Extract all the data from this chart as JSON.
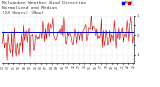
{
  "title": "Milwaukee Weather Wind Direction",
  "subtitle1": "Normalized and Median",
  "subtitle2": "(24 Hours) (New)",
  "bg_color": "#ffffff",
  "plot_bg_color": "#ffffff",
  "grid_color": "#bbbbbb",
  "line_color": "#cc0000",
  "median_color": "#0000cc",
  "legend_colors": [
    "#0000cc",
    "#cc0000"
  ],
  "ylim": [
    -1.4,
    1.0
  ],
  "median_value": 0.15,
  "n_points": 144,
  "noise_seed": 42,
  "title_fontsize": 3.2,
  "tick_fontsize": 2.8,
  "xlabel_fontsize": 2.2
}
